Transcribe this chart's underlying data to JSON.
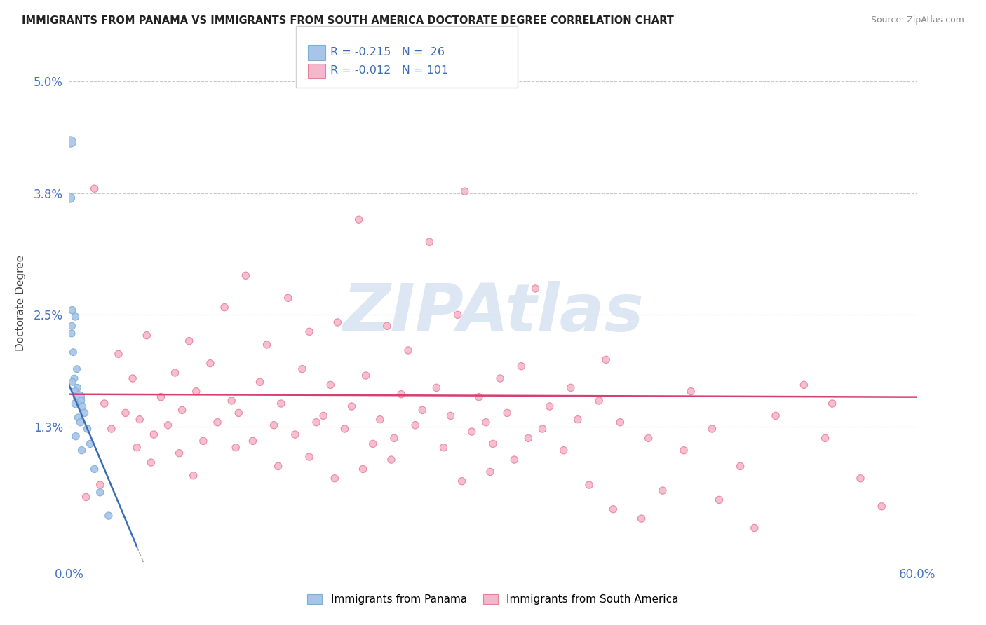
{
  "title": "IMMIGRANTS FROM PANAMA VS IMMIGRANTS FROM SOUTH AMERICA DOCTORATE DEGREE CORRELATION CHART",
  "source": "Source: ZipAtlas.com",
  "ylabel": "Doctorate Degree",
  "xlim": [
    0.0,
    60.0
  ],
  "ylim": [
    -0.15,
    5.4
  ],
  "ytick_vals": [
    1.3,
    2.5,
    3.8,
    5.0
  ],
  "color_panama_fill": "#a8c4e8",
  "color_panama_edge": "#7bafd4",
  "color_sa_fill": "#f5b8cb",
  "color_sa_edge": "#e8809a",
  "color_trend_panama": "#3a6db5",
  "color_trend_sa": "#d44070",
  "color_grid": "#c8c8c8",
  "bg_color": "#ffffff",
  "watermark_color": "#c5d8ec",
  "watermark_text": "ZIPAtlas",
  "panama_data": [
    [
      0.12,
      4.35,
      120
    ],
    [
      0.08,
      3.75,
      90
    ],
    [
      0.22,
      2.55,
      55
    ],
    [
      0.18,
      2.3,
      50
    ],
    [
      0.3,
      2.1,
      50
    ],
    [
      0.45,
      2.48,
      55
    ],
    [
      0.2,
      2.38,
      50
    ],
    [
      0.55,
      1.92,
      50
    ],
    [
      0.38,
      1.82,
      50
    ],
    [
      0.25,
      1.78,
      50
    ],
    [
      0.6,
      1.72,
      50
    ],
    [
      0.42,
      1.68,
      55
    ],
    [
      0.7,
      1.62,
      130
    ],
    [
      0.5,
      1.55,
      80
    ],
    [
      0.85,
      1.58,
      55
    ],
    [
      0.95,
      1.52,
      55
    ],
    [
      1.1,
      1.45,
      55
    ],
    [
      0.65,
      1.4,
      55
    ],
    [
      0.8,
      1.35,
      55
    ],
    [
      1.3,
      1.28,
      55
    ],
    [
      0.48,
      1.2,
      55
    ],
    [
      1.5,
      1.12,
      55
    ],
    [
      0.9,
      1.05,
      55
    ],
    [
      1.8,
      0.85,
      55
    ],
    [
      2.2,
      0.6,
      55
    ],
    [
      2.8,
      0.35,
      55
    ]
  ],
  "sa_data": [
    [
      1.8,
      3.85,
      55
    ],
    [
      28.0,
      3.82,
      55
    ],
    [
      20.5,
      3.52,
      55
    ],
    [
      25.5,
      3.28,
      55
    ],
    [
      12.5,
      2.92,
      55
    ],
    [
      33.0,
      2.78,
      55
    ],
    [
      15.5,
      2.68,
      55
    ],
    [
      11.0,
      2.58,
      55
    ],
    [
      27.5,
      2.5,
      55
    ],
    [
      19.0,
      2.42,
      55
    ],
    [
      22.5,
      2.38,
      55
    ],
    [
      17.0,
      2.32,
      55
    ],
    [
      5.5,
      2.28,
      55
    ],
    [
      8.5,
      2.22,
      55
    ],
    [
      14.0,
      2.18,
      55
    ],
    [
      24.0,
      2.12,
      55
    ],
    [
      3.5,
      2.08,
      55
    ],
    [
      38.0,
      2.02,
      55
    ],
    [
      10.0,
      1.98,
      55
    ],
    [
      32.0,
      1.95,
      55
    ],
    [
      16.5,
      1.92,
      55
    ],
    [
      7.5,
      1.88,
      55
    ],
    [
      21.0,
      1.85,
      55
    ],
    [
      4.5,
      1.82,
      55
    ],
    [
      30.5,
      1.82,
      55
    ],
    [
      13.5,
      1.78,
      55
    ],
    [
      18.5,
      1.75,
      55
    ],
    [
      26.0,
      1.72,
      55
    ],
    [
      35.5,
      1.72,
      55
    ],
    [
      9.0,
      1.68,
      55
    ],
    [
      23.5,
      1.65,
      55
    ],
    [
      6.5,
      1.62,
      55
    ],
    [
      29.0,
      1.62,
      55
    ],
    [
      11.5,
      1.58,
      55
    ],
    [
      37.5,
      1.58,
      55
    ],
    [
      2.5,
      1.55,
      55
    ],
    [
      15.0,
      1.55,
      55
    ],
    [
      20.0,
      1.52,
      55
    ],
    [
      34.0,
      1.52,
      55
    ],
    [
      8.0,
      1.48,
      55
    ],
    [
      25.0,
      1.48,
      55
    ],
    [
      4.0,
      1.45,
      55
    ],
    [
      12.0,
      1.45,
      55
    ],
    [
      31.0,
      1.45,
      55
    ],
    [
      18.0,
      1.42,
      55
    ],
    [
      27.0,
      1.42,
      55
    ],
    [
      5.0,
      1.38,
      55
    ],
    [
      22.0,
      1.38,
      55
    ],
    [
      36.0,
      1.38,
      55
    ],
    [
      10.5,
      1.35,
      55
    ],
    [
      17.5,
      1.35,
      55
    ],
    [
      29.5,
      1.35,
      55
    ],
    [
      39.0,
      1.35,
      55
    ],
    [
      7.0,
      1.32,
      55
    ],
    [
      14.5,
      1.32,
      55
    ],
    [
      24.5,
      1.32,
      55
    ],
    [
      33.5,
      1.28,
      55
    ],
    [
      3.0,
      1.28,
      55
    ],
    [
      19.5,
      1.28,
      55
    ],
    [
      28.5,
      1.25,
      55
    ],
    [
      6.0,
      1.22,
      55
    ],
    [
      16.0,
      1.22,
      55
    ],
    [
      23.0,
      1.18,
      55
    ],
    [
      32.5,
      1.18,
      55
    ],
    [
      9.5,
      1.15,
      55
    ],
    [
      13.0,
      1.15,
      55
    ],
    [
      21.5,
      1.12,
      55
    ],
    [
      30.0,
      1.12,
      55
    ],
    [
      4.8,
      1.08,
      55
    ],
    [
      11.8,
      1.08,
      55
    ],
    [
      26.5,
      1.08,
      55
    ],
    [
      35.0,
      1.05,
      55
    ],
    [
      7.8,
      1.02,
      55
    ],
    [
      17.0,
      0.98,
      55
    ],
    [
      22.8,
      0.95,
      55
    ],
    [
      31.5,
      0.95,
      55
    ],
    [
      5.8,
      0.92,
      55
    ],
    [
      14.8,
      0.88,
      55
    ],
    [
      20.8,
      0.85,
      55
    ],
    [
      29.8,
      0.82,
      55
    ],
    [
      8.8,
      0.78,
      55
    ],
    [
      18.8,
      0.75,
      55
    ],
    [
      27.8,
      0.72,
      55
    ],
    [
      36.8,
      0.68,
      55
    ],
    [
      44.0,
      1.68,
      55
    ],
    [
      50.0,
      1.42,
      55
    ],
    [
      42.0,
      0.62,
      55
    ],
    [
      46.0,
      0.52,
      55
    ],
    [
      38.5,
      0.42,
      55
    ],
    [
      40.5,
      0.32,
      55
    ],
    [
      48.5,
      0.22,
      55
    ],
    [
      45.5,
      1.28,
      55
    ],
    [
      52.0,
      1.75,
      55
    ],
    [
      54.0,
      1.55,
      55
    ],
    [
      56.0,
      0.75,
      55
    ],
    [
      43.5,
      1.05,
      55
    ],
    [
      41.0,
      1.18,
      55
    ],
    [
      47.5,
      0.88,
      55
    ],
    [
      53.5,
      1.18,
      55
    ],
    [
      57.5,
      0.45,
      55
    ],
    [
      2.2,
      0.68,
      55
    ],
    [
      1.2,
      0.55,
      55
    ]
  ]
}
